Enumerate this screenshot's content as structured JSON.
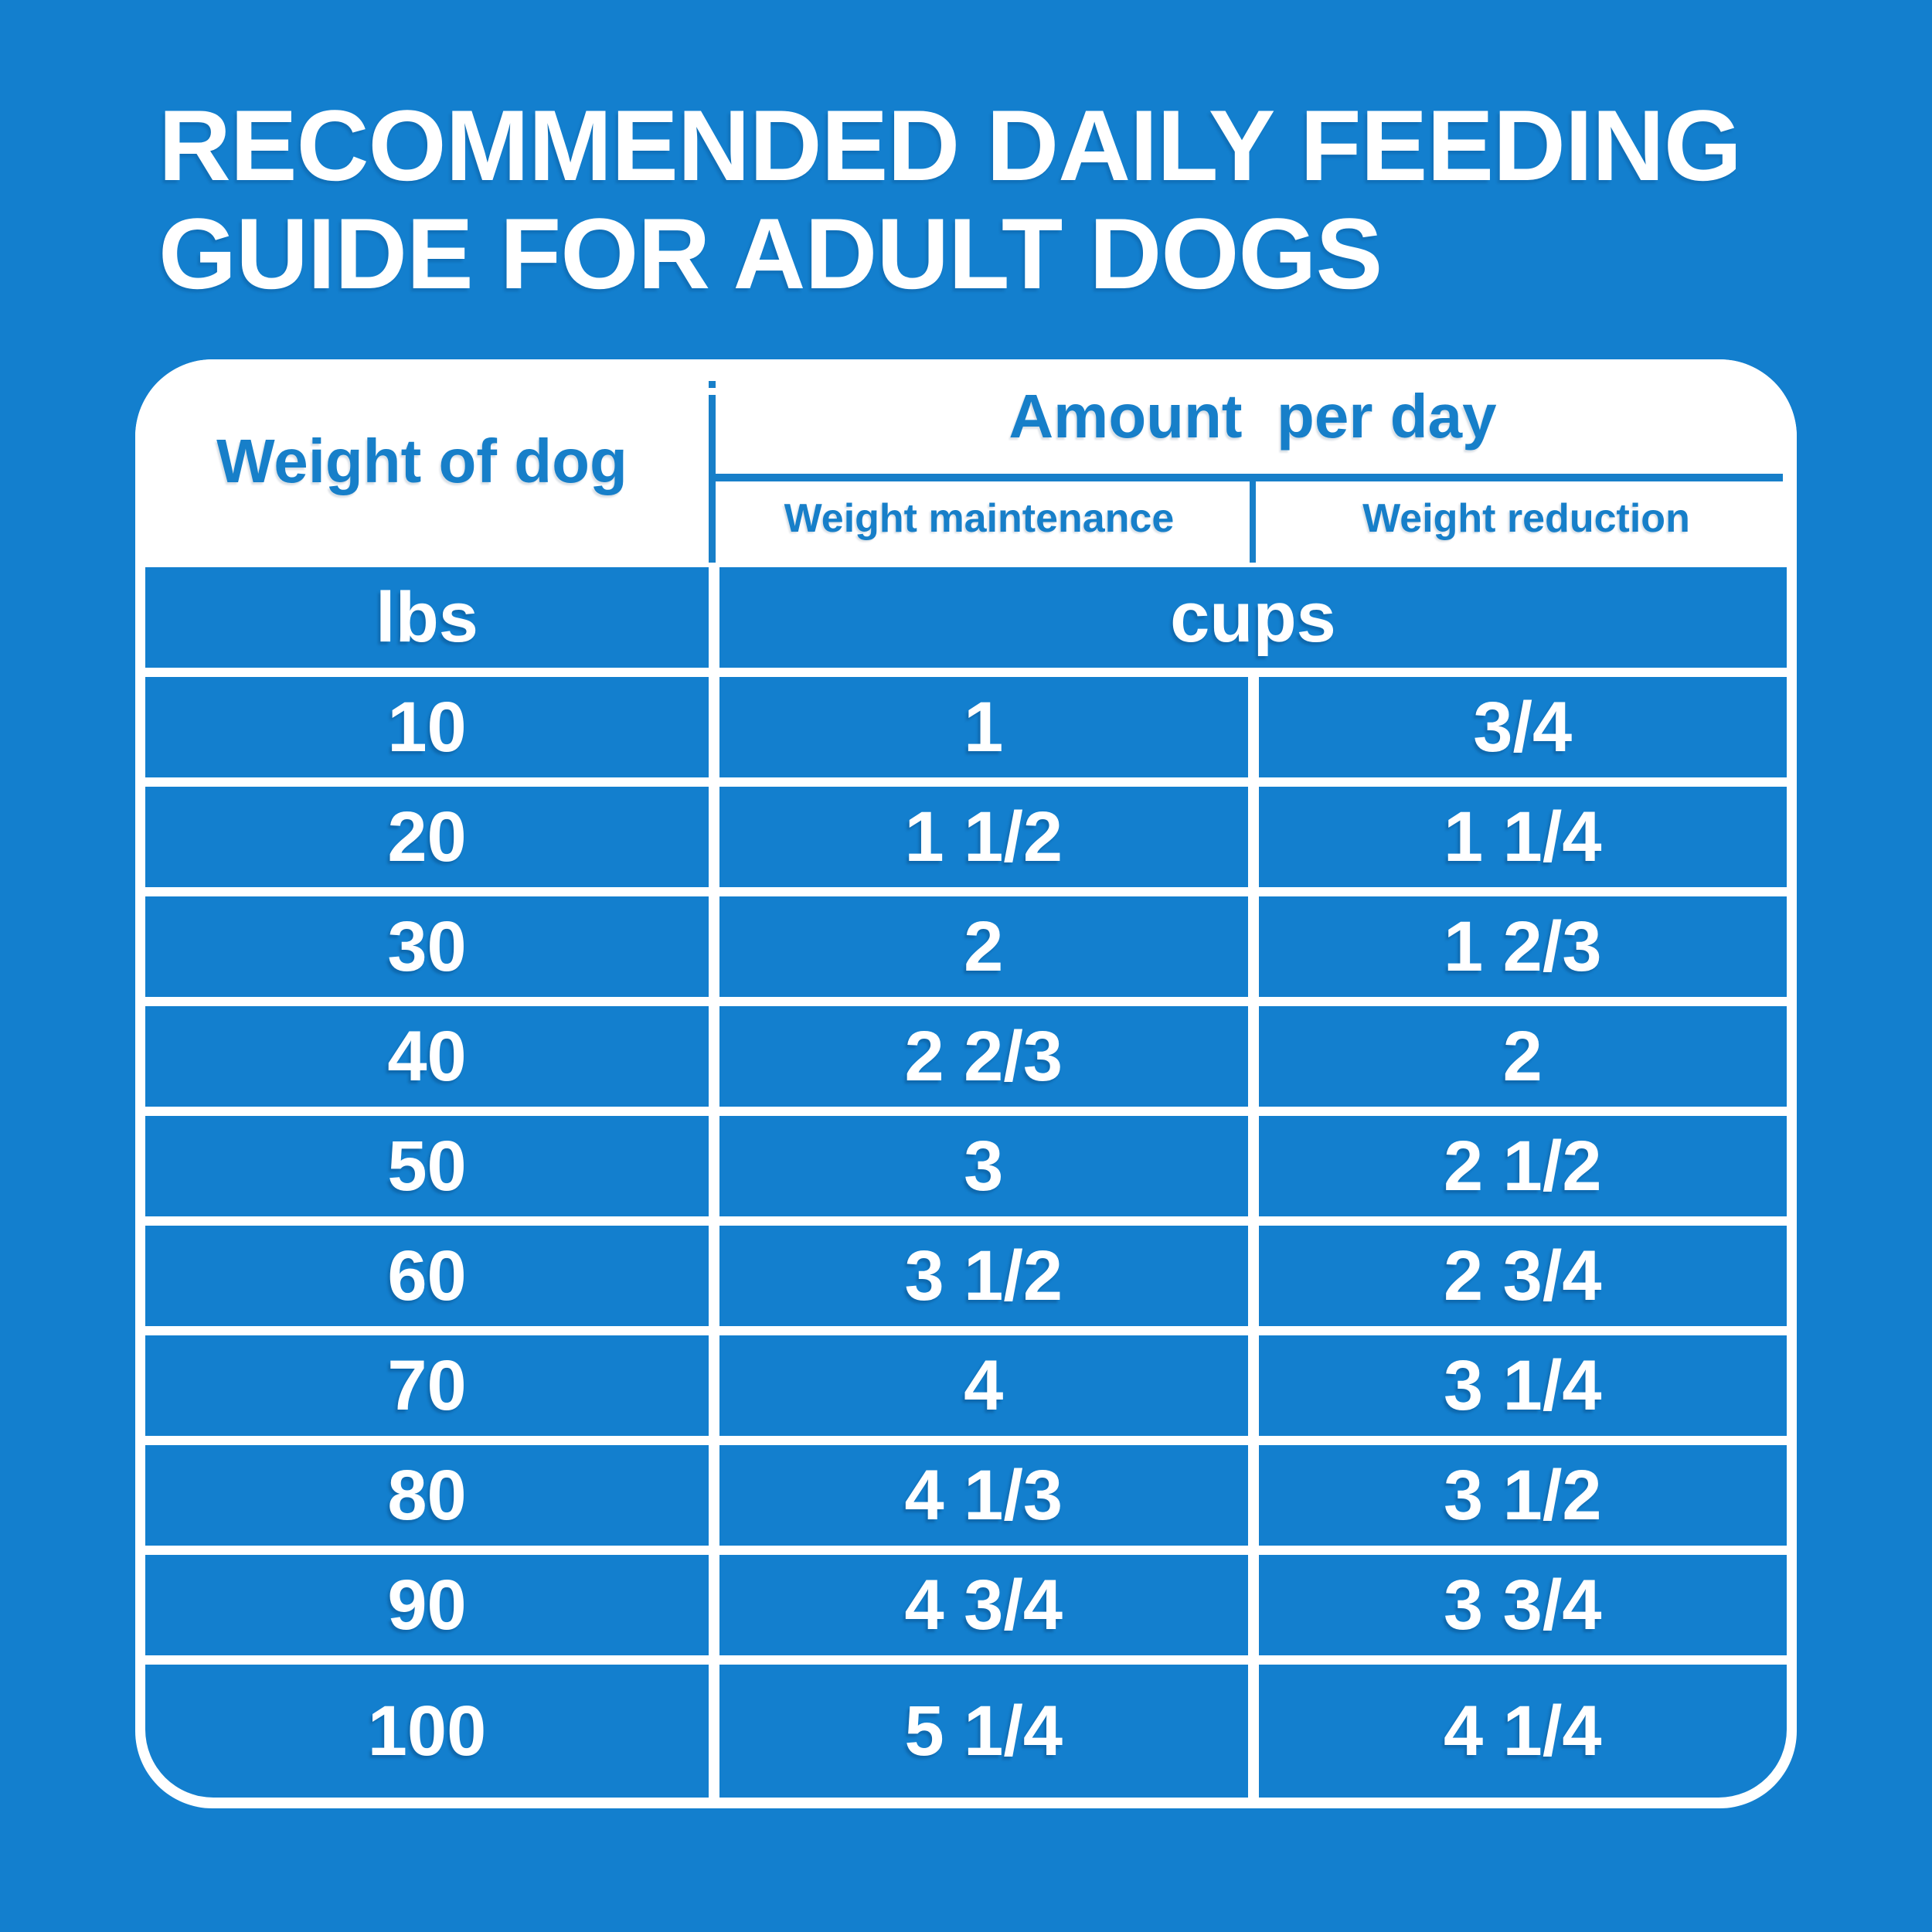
{
  "title_lines": [
    "RECOMMENDED DAILY FEEDING",
    "GUIDE FOR ADULT DOGS"
  ],
  "colors": {
    "background_blue": "#137FCE",
    "accent_text_blue": "#177FC9",
    "white": "#FFFFFF"
  },
  "chart_data": {
    "type": "table",
    "title": "RECOMMENDED DAILY FEEDING GUIDE FOR ADULT DOGS",
    "col_group": {
      "weight": "Weight of dog",
      "amount": "Amount  per day"
    },
    "sub_columns": [
      "Weight maintenance",
      "Weight reduction"
    ],
    "units": {
      "weight": "lbs",
      "amount": "cups"
    },
    "rows": [
      {
        "weight": "10",
        "maintenance": "1",
        "reduction": "3/4"
      },
      {
        "weight": "20",
        "maintenance": "1 1/2",
        "reduction": "1 1/4"
      },
      {
        "weight": "30",
        "maintenance": "2",
        "reduction": "1 2/3"
      },
      {
        "weight": "40",
        "maintenance": "2 2/3",
        "reduction": "2"
      },
      {
        "weight": "50",
        "maintenance": "3",
        "reduction": "2 1/2"
      },
      {
        "weight": "60",
        "maintenance": "3 1/2",
        "reduction": "2 3/4"
      },
      {
        "weight": "70",
        "maintenance": "4",
        "reduction": "3 1/4"
      },
      {
        "weight": "80",
        "maintenance": "4 1/3",
        "reduction": "3 1/2"
      },
      {
        "weight": "90",
        "maintenance": "4 3/4",
        "reduction": "3 3/4"
      },
      {
        "weight": "100",
        "maintenance": "5 1/4",
        "reduction": "4 1/4"
      }
    ]
  }
}
